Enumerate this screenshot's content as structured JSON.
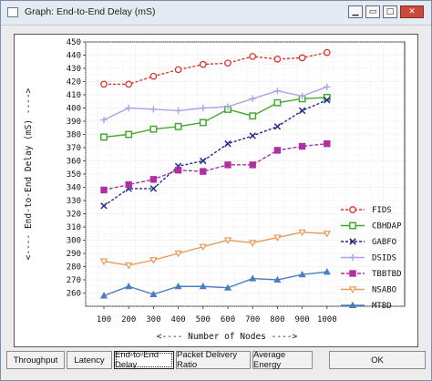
{
  "window": {
    "title": "Graph: End-to-End Delay (mS)"
  },
  "tabs": [
    {
      "label": "Throughput"
    },
    {
      "label": "Latency"
    },
    {
      "label": "End-to-End Delay",
      "active": true
    },
    {
      "label": "Packet Delivery Ratio"
    },
    {
      "label": "Average Energy"
    },
    {
      "label": "OK"
    }
  ],
  "chart_data": {
    "type": "line",
    "title": "",
    "xlabel": "<---- Number of Nodes ---->",
    "ylabel": "<---- End-to-End Delay (mS) ---->",
    "categories": [
      "100",
      "200",
      "300",
      "400",
      "500",
      "600",
      "700",
      "800",
      "900",
      "1000"
    ],
    "ylim": [
      250,
      450
    ],
    "yticks": [
      260,
      270,
      280,
      290,
      300,
      310,
      320,
      330,
      340,
      350,
      360,
      370,
      380,
      390,
      400,
      410,
      420,
      430,
      440,
      450
    ],
    "grid": true,
    "legend_position": "right",
    "series": [
      {
        "name": "FIDS",
        "color": "#d9352a",
        "marker": "circle-open",
        "dash": "3,2",
        "values": [
          418,
          418,
          424,
          429,
          433,
          434,
          439,
          437,
          438,
          442
        ]
      },
      {
        "name": "CBHDAP",
        "color": "#48a832",
        "marker": "square-open",
        "dash": "",
        "values": [
          378,
          380,
          384,
          386,
          389,
          399,
          394,
          404,
          407,
          408
        ]
      },
      {
        "name": "GABFO",
        "color": "#232a8c",
        "marker": "x",
        "dash": "3,2",
        "values": [
          326,
          339,
          339,
          356,
          360,
          373,
          379,
          386,
          398,
          406
        ]
      },
      {
        "name": "DSIDS",
        "color": "#a8a6e8",
        "marker": "plus",
        "dash": "",
        "values": [
          391,
          400,
          399,
          398,
          400,
          401,
          407,
          413,
          409,
          416
        ]
      },
      {
        "name": "TBBTBD",
        "color": "#b030a4",
        "marker": "square-filled",
        "dash": "4,2",
        "values": [
          338,
          342,
          346,
          353,
          352,
          357,
          357,
          368,
          371,
          373
        ]
      },
      {
        "name": "NSABO",
        "color": "#e89a58",
        "marker": "triangle-down-open",
        "dash": "",
        "values": [
          284,
          281,
          285,
          290,
          295,
          300,
          298,
          302,
          306,
          305
        ]
      },
      {
        "name": "MTBD",
        "color": "#4a7ec2",
        "marker": "triangle-up-filled",
        "dash": "",
        "values": [
          258,
          265,
          259,
          265,
          265,
          264,
          271,
          270,
          274,
          276
        ]
      }
    ]
  }
}
